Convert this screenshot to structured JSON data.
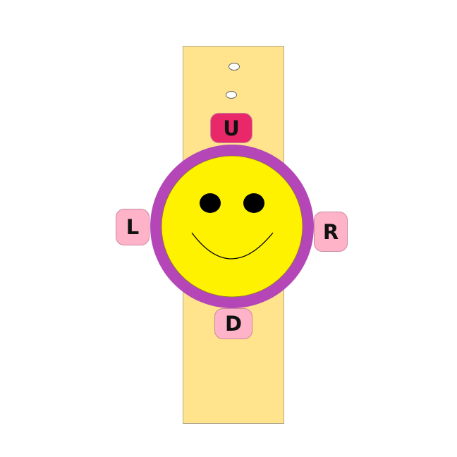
{
  "colors": {
    "strap": "#ffe38d",
    "bezel": "#b546b8",
    "face": "#fff200",
    "button_active": "#e9286a",
    "button_idle": "#ffb3c8"
  },
  "controls": {
    "up": {
      "label": "U",
      "active": true
    },
    "left": {
      "label": "L",
      "active": false
    },
    "right": {
      "label": "R",
      "active": false
    },
    "down": {
      "label": "D",
      "active": false
    }
  }
}
